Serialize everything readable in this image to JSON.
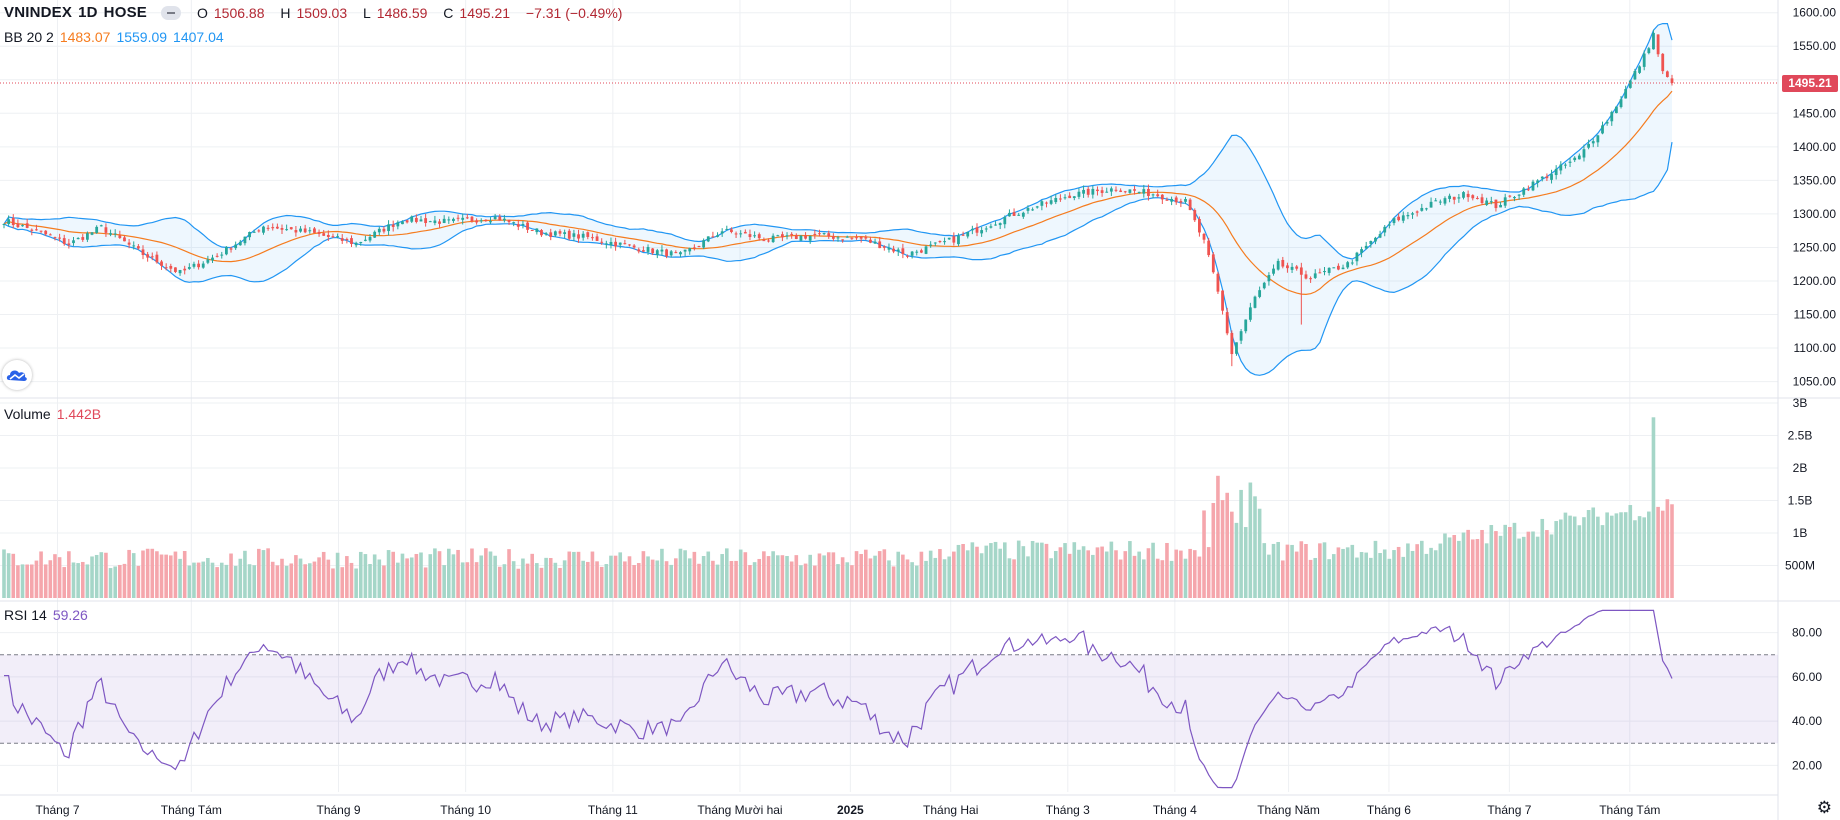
{
  "symbol": {
    "name": "VNINDEX",
    "interval": "1D",
    "exchange": "HOSE"
  },
  "ohlc": {
    "o_label": "O",
    "o": "1506.88",
    "h_label": "H",
    "h": "1509.03",
    "l_label": "L",
    "l": "1486.59",
    "c_label": "C",
    "c": "1495.21",
    "change": "−7.31 (−0.49%)"
  },
  "bb_legend": {
    "label": "BB 20 2",
    "basis": "1483.07",
    "upper": "1559.09",
    "lower": "1407.04"
  },
  "volume_legend": {
    "label": "Volume",
    "value": "1.442B"
  },
  "rsi_legend": {
    "label": "RSI 14",
    "value": "59.26"
  },
  "last_price_tag": "1495.21",
  "colors": {
    "up": "#26a69a",
    "down": "#ef5350",
    "vol_up": "#a5d6c8",
    "vol_down": "#f5a6ac",
    "bb_basis": "#f57c1f",
    "bb_band": "#2196f3",
    "rsi_line": "#7e57c2",
    "price_tag": "#e0485a"
  },
  "chart_data": [
    {
      "type": "candlestick",
      "title": "VNINDEX 1D HOSE",
      "ylim": [
        1030,
        1610
      ],
      "y_ticks": [
        "1600.00",
        "1550.00",
        "1500.00",
        "1450.00",
        "1400.00",
        "1350.00",
        "1300.00",
        "1250.00",
        "1200.00",
        "1150.00",
        "1100.00",
        "1050.00"
      ],
      "x_ticks": [
        "Tháng 7",
        "Tháng Tám",
        "Tháng 9",
        "Tháng 10",
        "Tháng 11",
        "Tháng Mười hai",
        "2025",
        "Tháng Hai",
        "Tháng 3",
        "Tháng 4",
        "Tháng Năm",
        "Tháng 6",
        "Tháng 7",
        "Tháng Tám"
      ],
      "close_keypoints": [
        [
          0,
          1290
        ],
        [
          8,
          1272
        ],
        [
          14,
          1255
        ],
        [
          21,
          1280
        ],
        [
          30,
          1240
        ],
        [
          38,
          1212
        ],
        [
          46,
          1238
        ],
        [
          56,
          1282
        ],
        [
          66,
          1272
        ],
        [
          76,
          1256
        ],
        [
          86,
          1292
        ],
        [
          96,
          1288
        ],
        [
          106,
          1295
        ],
        [
          116,
          1272
        ],
        [
          126,
          1265
        ],
        [
          136,
          1250
        ],
        [
          146,
          1238
        ],
        [
          155,
          1275
        ],
        [
          165,
          1262
        ],
        [
          175,
          1268
        ],
        [
          185,
          1263
        ],
        [
          195,
          1240
        ],
        [
          205,
          1262
        ],
        [
          218,
          1300
        ],
        [
          230,
          1328
        ],
        [
          240,
          1338
        ],
        [
          248,
          1330
        ],
        [
          255,
          1318
        ],
        [
          259,
          1258
        ],
        [
          261,
          1210
        ],
        [
          263,
          1155
        ],
        [
          265,
          1092
        ],
        [
          270,
          1175
        ],
        [
          275,
          1225
        ],
        [
          282,
          1205
        ],
        [
          290,
          1225
        ],
        [
          300,
          1290
        ],
        [
          310,
          1320
        ],
        [
          316,
          1330
        ],
        [
          322,
          1312
        ],
        [
          330,
          1345
        ],
        [
          340,
          1385
        ],
        [
          346,
          1440
        ],
        [
          350,
          1485
        ],
        [
          354,
          1535
        ],
        [
          356,
          1568
        ],
        [
          358,
          1510
        ],
        [
          360,
          1495
        ]
      ],
      "last_close": 1495.21,
      "bollinger": {
        "period": 20,
        "stddev": 2,
        "basis_last": 1483.07,
        "upper_last": 1559.09,
        "lower_last": 1407.04
      }
    },
    {
      "type": "bar",
      "title": "Volume",
      "ylim": [
        0,
        3000000000
      ],
      "y_ticks": [
        "3B",
        "2.5B",
        "2B",
        "1.5B",
        "1B",
        "500M"
      ],
      "last_value": 1442000000,
      "spikes": [
        {
          "bar": 262,
          "value": 1880000000
        },
        {
          "bar": 356,
          "value": 2780000000
        }
      ]
    },
    {
      "type": "line",
      "title": "RSI 14",
      "ylim": [
        8,
        92
      ],
      "y_ticks": [
        "80.00",
        "60.00",
        "40.00",
        "20.00"
      ],
      "overbought": 70,
      "oversold": 30,
      "last_value": 59.26
    }
  ]
}
